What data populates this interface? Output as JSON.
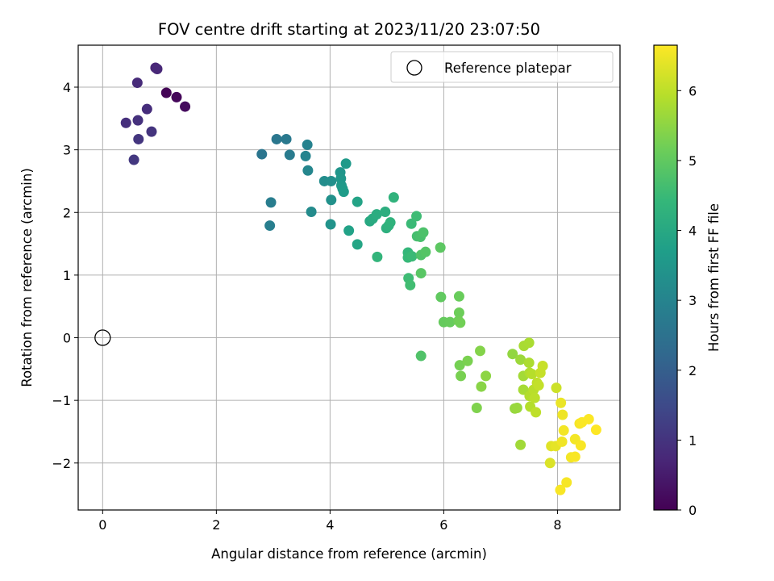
{
  "chart_data": {
    "type": "scatter",
    "title": "FOV centre drift starting at 2023/11/20 23:07:50",
    "xlabel": "Angular distance from reference (arcmin)",
    "ylabel": "Rotation from reference (arcmin)",
    "xlim": [
      -0.43,
      9.1
    ],
    "ylim": [
      -2.75,
      4.67
    ],
    "x_ticks": [
      0,
      2,
      4,
      6,
      8
    ],
    "y_ticks": [
      -2,
      -1,
      0,
      1,
      2,
      3,
      4
    ],
    "x_tick_labels": [
      "0",
      "2",
      "4",
      "6",
      "8"
    ],
    "y_tick_labels": [
      "−2",
      "−1",
      "0",
      "1",
      "2",
      "3",
      "4"
    ],
    "grid": true,
    "legend": {
      "placement": "top-right",
      "entries": [
        "Reference platepar"
      ]
    },
    "reference_point": {
      "x": 0,
      "y": 0
    },
    "colorbar": {
      "label": "Hours from first FF file",
      "range": [
        0,
        6.65
      ],
      "ticks": [
        0,
        1,
        2,
        3,
        4,
        5,
        6
      ],
      "tick_labels": [
        "0",
        "1",
        "2",
        "3",
        "4",
        "5",
        "6"
      ],
      "colormap": [
        "#440154",
        "#482878",
        "#3e4989",
        "#31688e",
        "#26828e",
        "#1f9e89",
        "#35b779",
        "#6ece58",
        "#b5de2b",
        "#fde725"
      ]
    },
    "points": [
      {
        "x": 1.12,
        "y": 3.91,
        "t": 0.05
      },
      {
        "x": 1.3,
        "y": 3.84,
        "t": 0.12
      },
      {
        "x": 1.45,
        "y": 3.69,
        "t": 0.18
      },
      {
        "x": 0.93,
        "y": 4.31,
        "t": 0.7
      },
      {
        "x": 0.96,
        "y": 4.29,
        "t": 0.75
      },
      {
        "x": 0.61,
        "y": 4.07,
        "t": 0.8
      },
      {
        "x": 0.78,
        "y": 3.65,
        "t": 0.85
      },
      {
        "x": 0.41,
        "y": 3.43,
        "t": 0.9
      },
      {
        "x": 0.62,
        "y": 3.47,
        "t": 0.95
      },
      {
        "x": 0.86,
        "y": 3.29,
        "t": 1.0
      },
      {
        "x": 0.63,
        "y": 3.17,
        "t": 1.05
      },
      {
        "x": 0.55,
        "y": 2.84,
        "t": 1.1
      },
      {
        "x": 2.8,
        "y": 2.93,
        "t": 2.6
      },
      {
        "x": 3.06,
        "y": 3.17,
        "t": 2.65
      },
      {
        "x": 3.23,
        "y": 3.17,
        "t": 2.7
      },
      {
        "x": 3.29,
        "y": 2.92,
        "t": 2.75
      },
      {
        "x": 2.96,
        "y": 2.16,
        "t": 2.8
      },
      {
        "x": 2.94,
        "y": 1.79,
        "t": 2.85
      },
      {
        "x": 3.6,
        "y": 3.08,
        "t": 2.95
      },
      {
        "x": 3.57,
        "y": 2.9,
        "t": 3.0
      },
      {
        "x": 3.61,
        "y": 2.67,
        "t": 3.05
      },
      {
        "x": 3.67,
        "y": 2.01,
        "t": 3.2
      },
      {
        "x": 3.9,
        "y": 2.5,
        "t": 3.25
      },
      {
        "x": 4.02,
        "y": 2.5,
        "t": 3.3
      },
      {
        "x": 4.02,
        "y": 2.2,
        "t": 3.35
      },
      {
        "x": 4.01,
        "y": 1.81,
        "t": 3.4
      },
      {
        "x": 4.18,
        "y": 2.64,
        "t": 3.45
      },
      {
        "x": 4.19,
        "y": 2.54,
        "t": 3.5
      },
      {
        "x": 4.2,
        "y": 2.43,
        "t": 3.55
      },
      {
        "x": 4.22,
        "y": 2.38,
        "t": 3.6
      },
      {
        "x": 4.24,
        "y": 2.33,
        "t": 3.65
      },
      {
        "x": 4.28,
        "y": 2.78,
        "t": 3.6
      },
      {
        "x": 4.33,
        "y": 1.71,
        "t": 3.8
      },
      {
        "x": 4.48,
        "y": 2.17,
        "t": 3.85
      },
      {
        "x": 4.48,
        "y": 1.49,
        "t": 3.9
      },
      {
        "x": 4.7,
        "y": 1.86,
        "t": 4.0
      },
      {
        "x": 4.75,
        "y": 1.9,
        "t": 4.05
      },
      {
        "x": 4.82,
        "y": 1.97,
        "t": 4.1
      },
      {
        "x": 4.97,
        "y": 2.01,
        "t": 4.15
      },
      {
        "x": 4.99,
        "y": 1.75,
        "t": 4.2
      },
      {
        "x": 5.03,
        "y": 1.79,
        "t": 4.25
      },
      {
        "x": 5.06,
        "y": 1.84,
        "t": 4.28
      },
      {
        "x": 5.12,
        "y": 2.24,
        "t": 4.3
      },
      {
        "x": 4.83,
        "y": 1.29,
        "t": 4.35
      },
      {
        "x": 5.37,
        "y": 1.36,
        "t": 4.4
      },
      {
        "x": 5.37,
        "y": 1.28,
        "t": 4.45
      },
      {
        "x": 5.44,
        "y": 1.3,
        "t": 4.5
      },
      {
        "x": 5.38,
        "y": 0.95,
        "t": 4.55
      },
      {
        "x": 5.41,
        "y": 0.84,
        "t": 4.6
      },
      {
        "x": 5.43,
        "y": 1.82,
        "t": 4.5
      },
      {
        "x": 5.52,
        "y": 1.94,
        "t": 4.55
      },
      {
        "x": 5.53,
        "y": 1.62,
        "t": 4.65
      },
      {
        "x": 5.59,
        "y": 1.61,
        "t": 4.7
      },
      {
        "x": 5.64,
        "y": 1.68,
        "t": 4.75
      },
      {
        "x": 5.6,
        "y": 1.32,
        "t": 4.8
      },
      {
        "x": 5.68,
        "y": 1.37,
        "t": 4.85
      },
      {
        "x": 5.6,
        "y": 1.03,
        "t": 4.9
      },
      {
        "x": 5.94,
        "y": 1.44,
        "t": 4.95
      },
      {
        "x": 5.95,
        "y": 0.65,
        "t": 5.0
      },
      {
        "x": 6.0,
        "y": 0.25,
        "t": 5.05
      },
      {
        "x": 6.11,
        "y": 0.25,
        "t": 5.08
      },
      {
        "x": 5.6,
        "y": -0.29,
        "t": 4.8
      },
      {
        "x": 6.27,
        "y": 0.66,
        "t": 5.1
      },
      {
        "x": 6.27,
        "y": 0.4,
        "t": 5.15
      },
      {
        "x": 6.26,
        "y": 0.27,
        "t": 5.18
      },
      {
        "x": 6.29,
        "y": 0.24,
        "t": 5.2
      },
      {
        "x": 6.28,
        "y": -0.44,
        "t": 5.25
      },
      {
        "x": 6.3,
        "y": -0.61,
        "t": 5.28
      },
      {
        "x": 6.42,
        "y": -0.37,
        "t": 5.3
      },
      {
        "x": 6.58,
        "y": -1.12,
        "t": 5.35
      },
      {
        "x": 6.64,
        "y": -0.21,
        "t": 5.4
      },
      {
        "x": 6.66,
        "y": -0.78,
        "t": 5.45
      },
      {
        "x": 6.74,
        "y": -0.61,
        "t": 5.5
      },
      {
        "x": 7.21,
        "y": -0.26,
        "t": 5.55
      },
      {
        "x": 7.25,
        "y": -1.13,
        "t": 5.6
      },
      {
        "x": 7.29,
        "y": -1.12,
        "t": 5.62
      },
      {
        "x": 7.35,
        "y": -0.35,
        "t": 5.65
      },
      {
        "x": 7.35,
        "y": -1.71,
        "t": 5.7
      },
      {
        "x": 7.4,
        "y": -0.61,
        "t": 5.72
      },
      {
        "x": 7.4,
        "y": -0.83,
        "t": 5.75
      },
      {
        "x": 7.41,
        "y": -0.13,
        "t": 5.78
      },
      {
        "x": 7.5,
        "y": -0.08,
        "t": 5.8
      },
      {
        "x": 7.5,
        "y": -0.4,
        "t": 5.82
      },
      {
        "x": 7.51,
        "y": -0.56,
        "t": 5.85
      },
      {
        "x": 7.51,
        "y": -0.93,
        "t": 5.88
      },
      {
        "x": 7.52,
        "y": -1.1,
        "t": 5.9
      },
      {
        "x": 7.55,
        "y": -0.58,
        "t": 5.92
      },
      {
        "x": 7.58,
        "y": -0.83,
        "t": 5.95
      },
      {
        "x": 7.6,
        "y": -0.96,
        "t": 5.97
      },
      {
        "x": 7.62,
        "y": -1.19,
        "t": 6.0
      },
      {
        "x": 7.64,
        "y": -0.72,
        "t": 6.02
      },
      {
        "x": 7.67,
        "y": -0.76,
        "t": 6.05
      },
      {
        "x": 7.7,
        "y": -0.56,
        "t": 6.08
      },
      {
        "x": 7.74,
        "y": -0.45,
        "t": 6.1
      },
      {
        "x": 7.98,
        "y": -0.8,
        "t": 6.15
      },
      {
        "x": 7.87,
        "y": -2.0,
        "t": 6.3
      },
      {
        "x": 7.89,
        "y": -1.73,
        "t": 6.35
      },
      {
        "x": 7.97,
        "y": -1.73,
        "t": 6.4
      },
      {
        "x": 8.06,
        "y": -1.04,
        "t": 6.45
      },
      {
        "x": 8.09,
        "y": -1.23,
        "t": 6.5
      },
      {
        "x": 8.08,
        "y": -1.66,
        "t": 6.52
      },
      {
        "x": 8.11,
        "y": -1.48,
        "t": 6.55
      },
      {
        "x": 8.05,
        "y": -2.43,
        "t": 6.6
      },
      {
        "x": 8.16,
        "y": -2.31,
        "t": 6.58
      },
      {
        "x": 8.24,
        "y": -1.91,
        "t": 6.55
      },
      {
        "x": 8.31,
        "y": -1.9,
        "t": 6.6
      },
      {
        "x": 8.31,
        "y": -1.62,
        "t": 6.55
      },
      {
        "x": 8.39,
        "y": -1.37,
        "t": 6.58
      },
      {
        "x": 8.43,
        "y": -1.35,
        "t": 6.62
      },
      {
        "x": 8.41,
        "y": -1.72,
        "t": 6.6
      },
      {
        "x": 8.55,
        "y": -1.3,
        "t": 6.63
      },
      {
        "x": 8.68,
        "y": -1.47,
        "t": 6.65
      }
    ]
  }
}
